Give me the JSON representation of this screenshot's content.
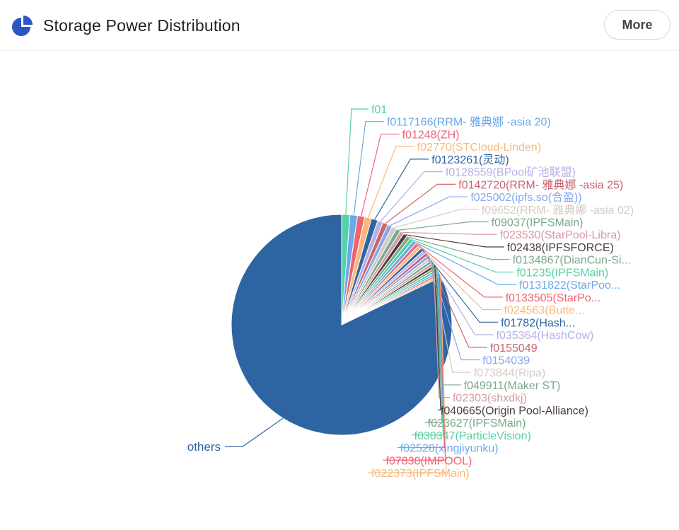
{
  "header": {
    "title": "Storage Power Distribution",
    "more_label": "More",
    "icon": "pie-chart-icon",
    "accent": "#2a56c6"
  },
  "chart_data": {
    "type": "pie",
    "title": "Storage Power Distribution",
    "slices": [
      {
        "label": "others",
        "value": 81.9,
        "color": "#2e64a2"
      },
      {
        "label": "f022373(IPFSMain)",
        "value": 0.3,
        "color": "#f9b87b"
      },
      {
        "label": "f07830(IMPOOL)",
        "value": 0.3,
        "color": "#ef6473"
      },
      {
        "label": "f02528(xingjiyunku)",
        "value": 0.3,
        "color": "#6ba9eb"
      },
      {
        "label": "f030347(ParticleVision)",
        "value": 0.35,
        "color": "#54d1a5"
      },
      {
        "label": "f023627(IPFSMain)",
        "value": 0.35,
        "color": "#7aa88a"
      },
      {
        "label": "f040665(Origin Pool-Alliance)",
        "value": 0.4,
        "color": "#4e3e3e"
      },
      {
        "label": "f02303(shxdkj)",
        "value": 0.4,
        "color": "#d59aa5"
      },
      {
        "label": "f049911(Maker ST)",
        "value": 0.4,
        "color": "#7aa88a"
      },
      {
        "label": "f073844(Ripa)",
        "value": 0.4,
        "color": "#d2cbc4"
      },
      {
        "label": "f0154039",
        "value": 0.45,
        "color": "#88a7ee"
      },
      {
        "label": "f0155049",
        "value": 0.45,
        "color": "#c6666e"
      },
      {
        "label": "f035364(HashCow)",
        "value": 0.45,
        "color": "#b6b0e6"
      },
      {
        "label": "f01782(Hash...",
        "value": 0.5,
        "color": "#2e64a2"
      },
      {
        "label": "f024563(Butte...",
        "value": 0.5,
        "color": "#f9b87b"
      },
      {
        "label": "f0133505(StarPo...",
        "value": 0.5,
        "color": "#ef6473"
      },
      {
        "label": "f0131822(StarPoo...",
        "value": 0.55,
        "color": "#6ba9eb"
      },
      {
        "label": "f01235(IPFSMain)",
        "value": 0.55,
        "color": "#54d1a5"
      },
      {
        "label": "f0134867(DianCun-Si...",
        "value": 0.55,
        "color": "#7aa88a"
      },
      {
        "label": "f02438(IPFSFORCE)",
        "value": 0.6,
        "color": "#4e3e3e"
      },
      {
        "label": "f023530(StarPool-Libra)",
        "value": 0.6,
        "color": "#d59aa5"
      },
      {
        "label": "f09037(IPFSMain)",
        "value": 0.65,
        "color": "#7aa88a"
      },
      {
        "label": "f09652(RRM- 雅典娜 -asia 02)",
        "value": 0.7,
        "color": "#d2cbc4"
      },
      {
        "label": "f025002(ipfs.so(合盈))",
        "value": 0.7,
        "color": "#88a7ee"
      },
      {
        "label": "f0142720(RRM- 雅典娜 -asia 25)",
        "value": 0.75,
        "color": "#c6666e"
      },
      {
        "label": "f0128559(BPool矿池联盟)",
        "value": 0.8,
        "color": "#b6b0e6"
      },
      {
        "label": "f0123261(灵动)",
        "value": 0.95,
        "color": "#2e64a2"
      },
      {
        "label": "f02770(STCloud-Linden)",
        "value": 1.0,
        "color": "#f9b87b"
      },
      {
        "label": "f01248(ZH)",
        "value": 1.05,
        "color": "#ef6473"
      },
      {
        "label": "f0117166(RRM- 雅典娜 -asia 20)",
        "value": 1.1,
        "color": "#6ba9eb"
      },
      {
        "label": "f01",
        "value": 1.2,
        "color": "#54d1a5"
      }
    ]
  }
}
